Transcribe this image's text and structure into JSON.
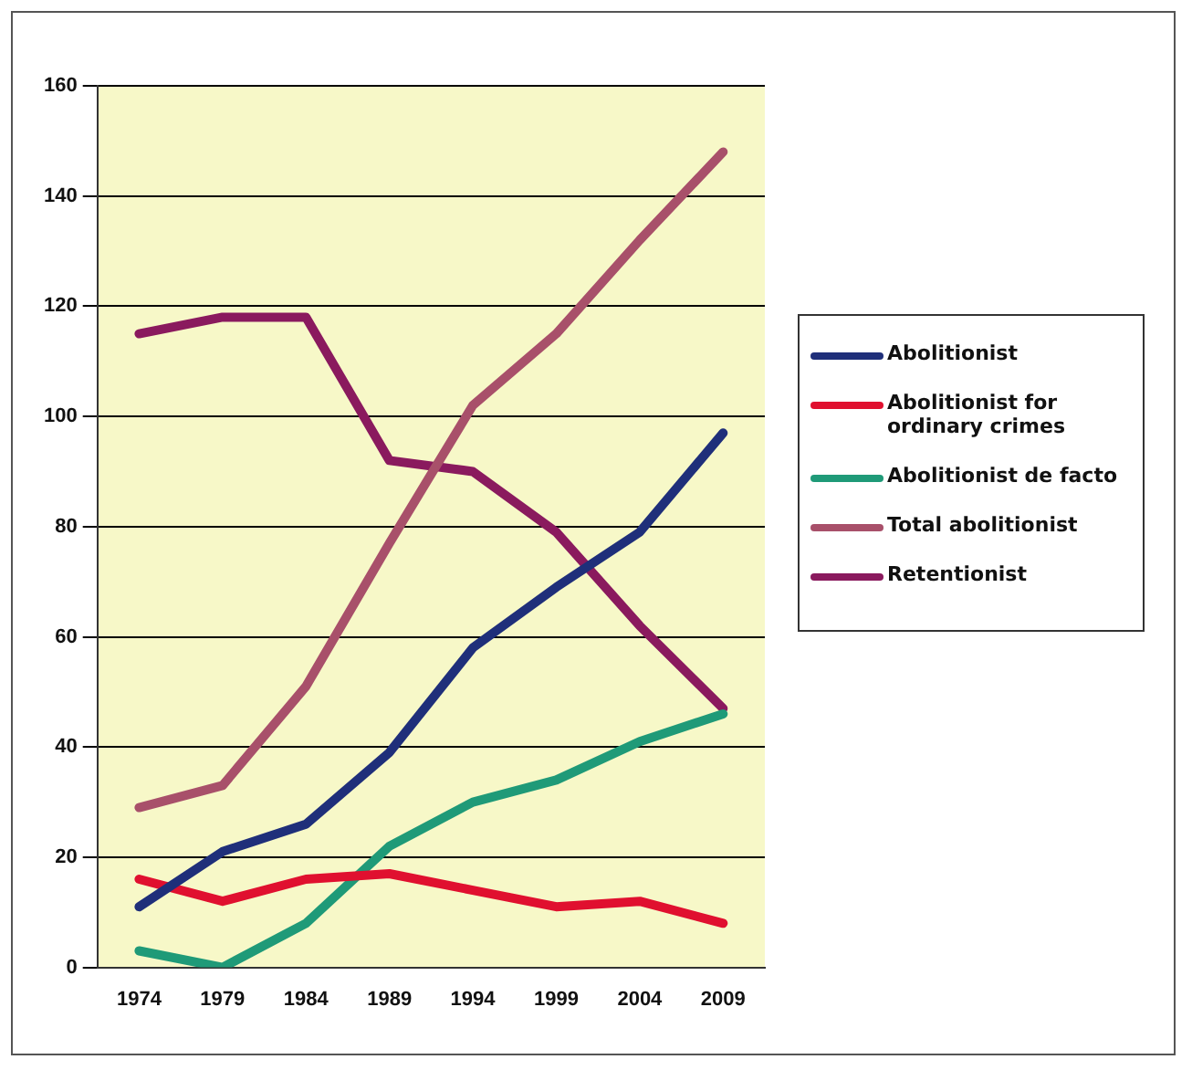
{
  "chart_data": {
    "type": "line",
    "categories": [
      "1974",
      "1979",
      "1984",
      "1989",
      "1994",
      "1999",
      "2004",
      "2009"
    ],
    "series": [
      {
        "name": "Abolitionist",
        "color": "#1f2f7a",
        "values": [
          11,
          21,
          26,
          39,
          58,
          69,
          79,
          97
        ]
      },
      {
        "name": "Abolitionist for ordinary crimes",
        "color": "#e0102f",
        "values": [
          16,
          12,
          16,
          17,
          14,
          11,
          12,
          8
        ]
      },
      {
        "name": "Abolitionist de facto",
        "color": "#1f9a78",
        "values": [
          3,
          0,
          8,
          22,
          30,
          34,
          41,
          46
        ]
      },
      {
        "name": "Total abolitionist",
        "color": "#a8506a",
        "values": [
          29,
          33,
          51,
          77,
          102,
          115,
          132,
          148
        ]
      },
      {
        "name": "Retentionist",
        "color": "#8a1a5e",
        "values": [
          115,
          118,
          118,
          92,
          90,
          79,
          62,
          47
        ]
      }
    ],
    "ylim": [
      0,
      160
    ],
    "yticks": [
      0,
      20,
      40,
      60,
      80,
      100,
      120,
      140,
      160
    ],
    "grid": "y",
    "legend": "right",
    "marker": "none",
    "line_style": "solid"
  }
}
